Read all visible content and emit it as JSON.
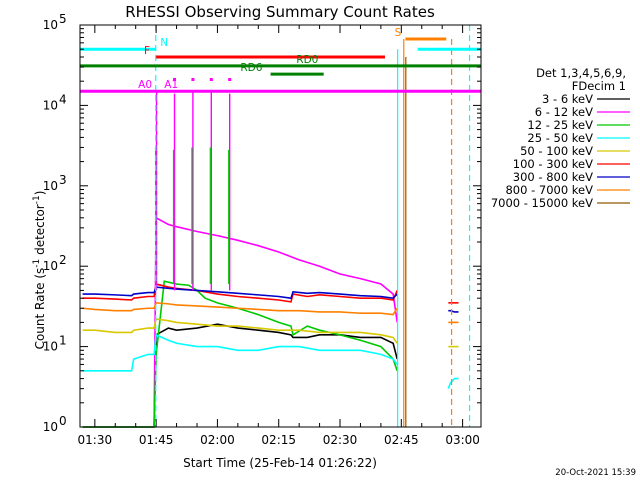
{
  "chart_data": {
    "type": "line",
    "title": "RHESSI Observing Summary Count Rates",
    "xlabel": "Start Time (25-Feb-14 01:26:22)",
    "ylabel": "Count Rate (s",
    "ylabel_sup1": "-1",
    "ylabel_mid": " detector",
    "ylabel_sup2": "-1",
    "ylabel_end": ")",
    "yscale": "log",
    "ylim": [
      1,
      100000
    ],
    "xlim_minutes": [
      86.37,
      184.5
    ],
    "x_ticks": [
      {
        "m": 90,
        "label": "01:30"
      },
      {
        "m": 105,
        "label": "01:45"
      },
      {
        "m": 120,
        "label": "02:00"
      },
      {
        "m": 135,
        "label": "02:15"
      },
      {
        "m": 150,
        "label": "02:30"
      },
      {
        "m": 165,
        "label": "02:45"
      },
      {
        "m": 180,
        "label": "03:00"
      }
    ],
    "y_ticks": [
      {
        "v": 1,
        "base": "10",
        "exp": "0"
      },
      {
        "v": 10,
        "base": "10",
        "exp": "1"
      },
      {
        "v": 100,
        "base": "10",
        "exp": "2"
      },
      {
        "v": 1000,
        "base": "10",
        "exp": "3"
      },
      {
        "v": 10000,
        "base": "10",
        "exp": "4"
      },
      {
        "v": 100000,
        "base": "10",
        "exp": "5"
      }
    ],
    "legend_header": [
      "Det 1,3,4,5,6,9,",
      "FDecim 1"
    ],
    "legend_placement": "right",
    "series": [
      {
        "name": "3 - 6 keV",
        "color": "#000000",
        "segments": [
          {
            "x": [
              87,
              90,
              95,
              99,
              99.5,
              103,
              104.5,
              105,
              108,
              110,
              115,
              120,
              125,
              130,
              135,
              138,
              138.5,
              142,
              145,
              150,
              155,
              160,
              163,
              164
            ],
            "y": [
              0,
              0,
              0,
              0,
              0,
              0,
              0,
              14,
              17,
              16,
              17,
              19,
              17,
              16,
              15,
              14,
              13,
              13,
              14,
              14,
              13,
              13,
              11,
              7
            ]
          }
        ]
      },
      {
        "name": "6 - 12 keV",
        "color": "#ff00ff",
        "segments": [
          {
            "x": [
              104.5,
              105,
              108,
              110,
              115,
              120,
              125,
              130,
              135,
              140,
              145,
              150,
              155,
              160,
              163,
              164
            ],
            "y": [
              0,
              400,
              330,
              310,
              270,
              240,
              210,
              180,
              150,
              120,
              100,
              80,
              70,
              60,
              45,
              20
            ]
          }
        ]
      },
      {
        "name": "12 - 25 keV",
        "color": "#00c800",
        "segments": [
          {
            "x": [
              87,
              99,
              99.5,
              103,
              104.5,
              105,
              107,
              110,
              113,
              115,
              117,
              120,
              125,
              130,
              135,
              138,
              138.5,
              142,
              145,
              150,
              155,
              160,
              163,
              164
            ],
            "y": [
              1,
              1,
              1,
              1,
              1,
              8,
              65,
              60,
              58,
              50,
              40,
              35,
              30,
              25,
              20,
              18,
              14,
              18,
              16,
              14,
              12,
              10,
              7,
              5
            ]
          }
        ]
      },
      {
        "name": "25 - 50 keV",
        "color": "#00ffff",
        "segments": [
          {
            "x": [
              87,
              90,
              95,
              99,
              99.5,
              103,
              104.5,
              105,
              108,
              110,
              115,
              120,
              125,
              130,
              135,
              140,
              145,
              150,
              155,
              160,
              163,
              164
            ],
            "y": [
              5,
              5,
              5,
              5,
              7,
              8,
              8,
              14,
              12,
              11,
              10,
              10,
              9,
              9,
              10,
              10,
              9,
              9,
              9,
              8,
              7,
              6
            ]
          },
          {
            "x": [
              176.5,
              177,
              178,
              179
            ],
            "y": [
              3,
              3.5,
              4,
              4
            ]
          }
        ]
      },
      {
        "name": "50 - 100 keV",
        "color": "#d8c800",
        "segments": [
          {
            "x": [
              87,
              90,
              95,
              99,
              99.5,
              103,
              104.5,
              105,
              108,
              110,
              115,
              120,
              125,
              130,
              135,
              140,
              145,
              150,
              155,
              160,
              163,
              164
            ],
            "y": [
              16,
              16,
              15,
              15,
              16,
              17,
              17,
              22,
              21,
              20,
              19,
              18,
              18,
              17,
              16,
              16,
              15,
              15,
              15,
              14,
              13,
              11
            ]
          },
          {
            "x": [
              176.5,
              177,
              178,
              179
            ],
            "y": [
              10,
              10,
              10,
              10
            ]
          }
        ]
      },
      {
        "name": "100 - 300 keV",
        "color": "#ff0000",
        "segments": [
          {
            "x": [
              87,
              90,
              95,
              99,
              99.5,
              103,
              104.5,
              105,
              108,
              110,
              115,
              120,
              125,
              130,
              135,
              138,
              138.5,
              142,
              145,
              150,
              155,
              160,
              163,
              164
            ],
            "y": [
              40,
              40,
              39,
              38,
              40,
              42,
              42,
              60,
              55,
              53,
              50,
              45,
              42,
              40,
              38,
              36,
              45,
              42,
              44,
              42,
              40,
              40,
              38,
              50
            ]
          },
          {
            "x": [
              176.5,
              177,
              178,
              179
            ],
            "y": [
              35,
              35,
              35,
              35
            ]
          }
        ]
      },
      {
        "name": "300 - 800 keV",
        "color": "#0000c8",
        "segments": [
          {
            "x": [
              87,
              90,
              95,
              99,
              99.5,
              103,
              104.5,
              105,
              108,
              110,
              115,
              120,
              125,
              130,
              135,
              138,
              138.5,
              142,
              145,
              150,
              155,
              160,
              163,
              164
            ],
            "y": [
              45,
              45,
              44,
              43,
              45,
              47,
              47,
              55,
              53,
              52,
              50,
              48,
              46,
              44,
              42,
              40,
              48,
              46,
              47,
              45,
              43,
              42,
              40,
              45
            ]
          },
          {
            "x": [
              176.5,
              177,
              178,
              179
            ],
            "y": [
              28,
              28,
              27,
              27
            ]
          }
        ]
      },
      {
        "name": "800 - 7000 keV",
        "color": "#ff8000",
        "segments": [
          {
            "x": [
              87,
              90,
              95,
              99,
              99.5,
              103,
              104.5,
              105,
              108,
              110,
              115,
              120,
              125,
              130,
              135,
              140,
              145,
              150,
              155,
              160,
              163,
              164
            ],
            "y": [
              30,
              29,
              28,
              28,
              29,
              30,
              30,
              35,
              34,
              33,
              32,
              31,
              30,
              29,
              28,
              28,
              27,
              27,
              26,
              26,
              25,
              30
            ]
          },
          {
            "x": [
              176.5,
              177,
              178,
              179
            ],
            "y": [
              20,
              20,
              20,
              20
            ]
          }
        ]
      },
      {
        "name": "7000 - 15000 keV",
        "color": "#8b5a00",
        "segments": []
      }
    ],
    "spikes": [
      {
        "x": 105.1,
        "y": 15000
      },
      {
        "x": 109.5,
        "y": 14000
      },
      {
        "x": 114.0,
        "y": 15000
      },
      {
        "x": 118.5,
        "y": 15000
      },
      {
        "x": 123.0,
        "y": 14000
      }
    ],
    "cyan_dashed_lines": [
      104.9,
      181.7
    ],
    "cyan_solid_lines": [
      164.1
    ],
    "orange_solid_lines": [
      165.6
    ],
    "orange_dashed_lines": [
      177.3
    ],
    "brown_lines": [
      166.1
    ],
    "annotations": [
      {
        "label": "N",
        "color": "#00ffff",
        "x1": 86.4,
        "x2": 104.9,
        "y": 50000,
        "label_x": 106,
        "label_side": "right"
      },
      {
        "label": "",
        "color": "#00ffff",
        "x1": 169,
        "x2": 184.5,
        "y": 50000
      },
      {
        "label": "S",
        "color": "#ff8000",
        "x1": 166,
        "x2": 176,
        "y": 67000,
        "label_x": 165,
        "label_side": "left"
      },
      {
        "label": "F",
        "color": "#ff0000",
        "x1": 105,
        "x2": 161,
        "y": 40000,
        "label_x": 103.5,
        "label_side": "left"
      },
      {
        "label": "RD0",
        "color": "#008000",
        "x1": 86.4,
        "x2": 184.5,
        "y": 31000,
        "label_x": 142,
        "label_side": "center"
      },
      {
        "label": "RD6",
        "color": "#008000",
        "x1": 133,
        "x2": 146,
        "y": 24500,
        "label_x": 131,
        "label_side": "left"
      },
      {
        "label": "A0",
        "color": "#ff00ff",
        "x1": 86.4,
        "x2": 184.5,
        "y": 15000,
        "label_x": 104,
        "label_side": "left"
      },
      {
        "label": "A1",
        "color": "#ff00ff",
        "x1": 106,
        "x2": 106,
        "y": 15000,
        "label_x": 107,
        "label_side": "right"
      }
    ],
    "annotation_dots": [
      109.5,
      114,
      118.5,
      123
    ],
    "date_stamp": "20-Oct-2021 15:39"
  }
}
